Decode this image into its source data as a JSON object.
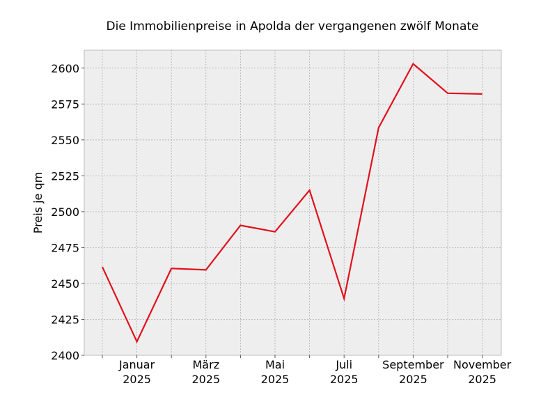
{
  "chart_data": {
    "type": "line",
    "title": "Die Immobilienpreise in Apolda der vergangenen zwölf Monate",
    "xlabel": "",
    "ylabel": "Preis je qm",
    "x": [
      "2024-12",
      "2025-01",
      "2025-02",
      "2025-03",
      "2025-04",
      "2025-05",
      "2025-06",
      "2025-07",
      "2025-08",
      "2025-09",
      "2025-10",
      "2025-11"
    ],
    "xticks": [
      {
        "x": "2025-01",
        "label": [
          "Januar",
          "2025"
        ]
      },
      {
        "x": "2025-03",
        "label": [
          "März",
          "2025"
        ]
      },
      {
        "x": "2025-05",
        "label": [
          "Mai",
          "2025"
        ]
      },
      {
        "x": "2025-07",
        "label": [
          "Juli",
          "2025"
        ]
      },
      {
        "x": "2025-09",
        "label": [
          "September",
          "2025"
        ]
      },
      {
        "x": "2025-11",
        "label": [
          "November",
          "2025"
        ]
      }
    ],
    "series": [
      {
        "color": "#e0111d",
        "values": [
          2461.5,
          2409.5,
          2460.5,
          2459.5,
          2490.5,
          2486.0,
          2515.0,
          2439.5,
          2558.5,
          2603.0,
          2582.5,
          2582.0
        ]
      }
    ],
    "ylim": [
      2400,
      2612.5
    ],
    "yticks": [
      2400,
      2425,
      2450,
      2475,
      2500,
      2525,
      2550,
      2575,
      2600
    ],
    "grid": true,
    "colors": {
      "plot_bg": "#eeeeee",
      "grid": "#b0b0b0",
      "line": "#e0111d"
    }
  }
}
